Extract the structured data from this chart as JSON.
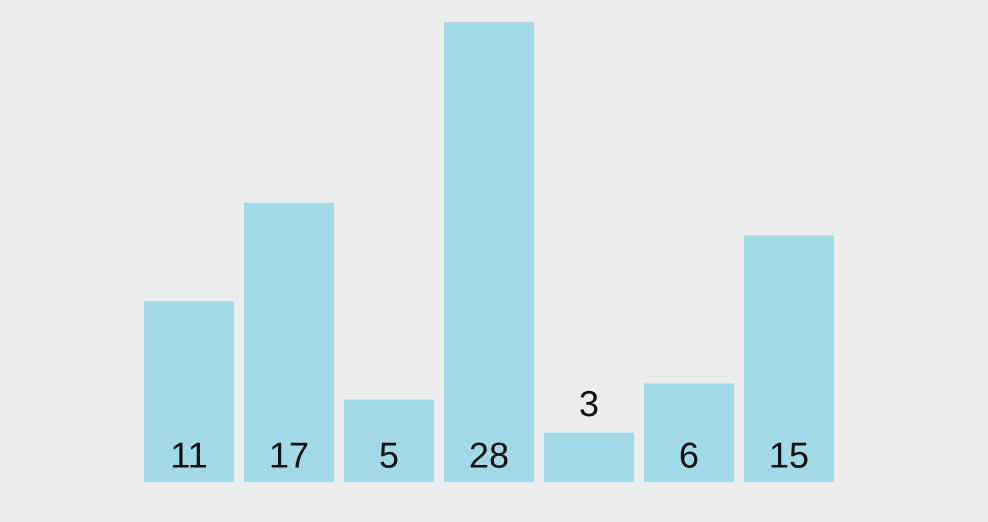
{
  "chart_data": {
    "type": "bar",
    "categories": [
      null,
      null,
      null,
      null,
      null,
      null,
      null
    ],
    "values": [
      11,
      17,
      5,
      28,
      3,
      6,
      15
    ],
    "color": "#a2d9e6",
    "data_labels": true
  }
}
